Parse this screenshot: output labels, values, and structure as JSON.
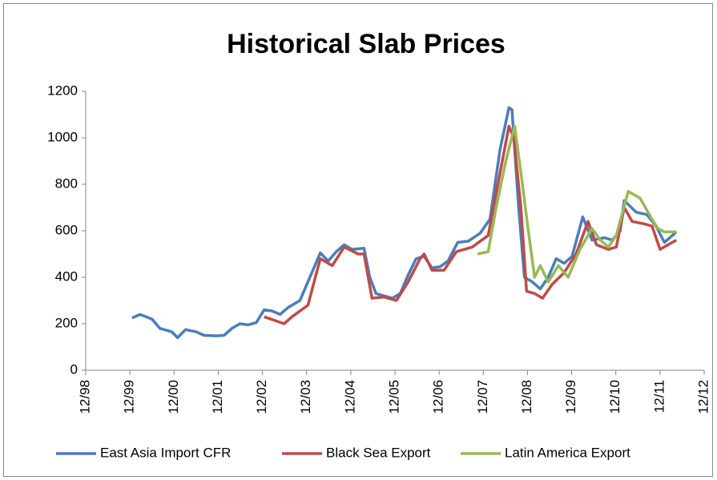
{
  "chart_data": {
    "type": "line",
    "title": "Historical Slab Prices",
    "xlim": [
      1998.92,
      2012.92
    ],
    "xticks": [
      {
        "value": 1998.92,
        "label": "12/98"
      },
      {
        "value": 1999.92,
        "label": "12/99"
      },
      {
        "value": 2000.92,
        "label": "12/00"
      },
      {
        "value": 2001.92,
        "label": "12/01"
      },
      {
        "value": 2002.92,
        "label": "12/02"
      },
      {
        "value": 2003.92,
        "label": "12/03"
      },
      {
        "value": 2004.92,
        "label": "12/04"
      },
      {
        "value": 2005.92,
        "label": "12/05"
      },
      {
        "value": 2006.92,
        "label": "12/06"
      },
      {
        "value": 2007.92,
        "label": "12/07"
      },
      {
        "value": 2008.92,
        "label": "12/08"
      },
      {
        "value": 2009.92,
        "label": "12/09"
      },
      {
        "value": 2010.92,
        "label": "12/10"
      },
      {
        "value": 2011.92,
        "label": "12/11"
      },
      {
        "value": 2012.92,
        "label": "12/12"
      }
    ],
    "ylim": [
      0,
      1200
    ],
    "yticks": [
      0,
      200,
      400,
      600,
      800,
      1000,
      1200
    ],
    "grid": false,
    "legend": "bottom",
    "series": [
      {
        "name": "East Asia Import CFR",
        "color": "#4a7ebb",
        "x": [
          1999.97,
          2000.15,
          2000.42,
          2000.6,
          2000.87,
          2001.0,
          2001.18,
          2001.42,
          2001.6,
          2001.87,
          2002.05,
          2002.23,
          2002.41,
          2002.59,
          2002.78,
          2002.96,
          2003.14,
          2003.32,
          2003.5,
          2003.77,
          2004.04,
          2004.23,
          2004.41,
          2004.59,
          2004.77,
          2004.95,
          2005.22,
          2005.35,
          2005.49,
          2005.67,
          2005.86,
          2006.04,
          2006.22,
          2006.4,
          2006.58,
          2006.76,
          2006.94,
          2007.12,
          2007.34,
          2007.58,
          2007.85,
          2008.07,
          2008.3,
          2008.5,
          2008.57,
          2008.72,
          2008.85,
          2009.03,
          2009.21,
          2009.39,
          2009.57,
          2009.75,
          2009.93,
          2010.17,
          2010.38,
          2010.66,
          2010.84,
          2011.02,
          2011.11,
          2011.38,
          2011.62,
          2011.83,
          2012.02,
          2012.29
        ],
        "values": [
          225,
          240,
          220,
          180,
          165,
          140,
          175,
          165,
          150,
          148,
          150,
          180,
          200,
          195,
          205,
          260,
          255,
          240,
          270,
          300,
          420,
          505,
          470,
          510,
          540,
          520,
          525,
          400,
          330,
          320,
          310,
          330,
          410,
          480,
          490,
          440,
          445,
          470,
          550,
          555,
          590,
          650,
          950,
          1130,
          1120,
          700,
          400,
          380,
          350,
          400,
          480,
          460,
          490,
          660,
          560,
          570,
          560,
          600,
          730,
          680,
          670,
          620,
          550,
          595
        ]
      },
      {
        "name": "Black Sea Export",
        "color": "#be4b48",
        "x": [
          2002.96,
          2003.41,
          2003.59,
          2003.95,
          2004.23,
          2004.5,
          2004.77,
          2005.09,
          2005.22,
          2005.4,
          2005.67,
          2005.95,
          2006.22,
          2006.49,
          2006.58,
          2006.76,
          2007.03,
          2007.31,
          2007.67,
          2008.03,
          2008.3,
          2008.5,
          2008.61,
          2008.77,
          2008.9,
          2009.08,
          2009.26,
          2009.48,
          2009.75,
          2010.02,
          2010.29,
          2010.48,
          2010.75,
          2010.93,
          2011.11,
          2011.29,
          2011.56,
          2011.74,
          2011.92,
          2012.29
        ],
        "values": [
          230,
          200,
          230,
          280,
          480,
          450,
          530,
          500,
          500,
          310,
          315,
          300,
          380,
          480,
          500,
          430,
          430,
          510,
          530,
          580,
          850,
          1050,
          1000,
          700,
          340,
          330,
          310,
          370,
          420,
          500,
          640,
          540,
          520,
          530,
          700,
          640,
          630,
          620,
          520,
          560
        ]
      },
      {
        "name": "Latin America Export",
        "color": "#98b954",
        "x": [
          2007.79,
          2008.03,
          2008.21,
          2008.43,
          2008.63,
          2008.77,
          2008.94,
          2009.08,
          2009.21,
          2009.39,
          2009.62,
          2009.84,
          2010.11,
          2010.38,
          2010.57,
          2010.75,
          2010.93,
          2011.2,
          2011.47,
          2011.74,
          2011.87,
          2012.02,
          2012.29
        ],
        "values": [
          500,
          510,
          700,
          900,
          1050,
          850,
          600,
          400,
          450,
          380,
          450,
          400,
          520,
          610,
          560,
          530,
          580,
          770,
          740,
          650,
          610,
          595,
          595
        ]
      }
    ]
  }
}
